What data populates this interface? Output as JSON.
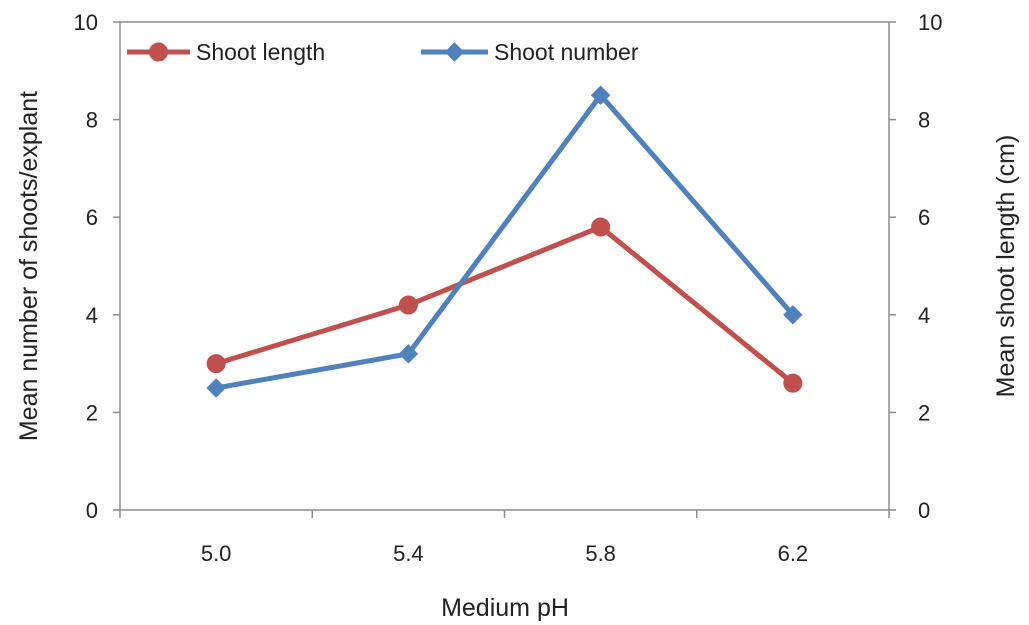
{
  "chart_data": {
    "type": "line",
    "categories": [
      "5.0",
      "5.4",
      "5.8",
      "6.2"
    ],
    "xlabel": "Medium pH",
    "ylabel_left": "Mean  number of shoots/explant",
    "ylabel_right": "Mean shoot length (cm)",
    "ylim_left": [
      0,
      10
    ],
    "ylim_right": [
      0,
      10
    ],
    "yticks_left": [
      "0",
      "2",
      "4",
      "6",
      "8",
      "10"
    ],
    "yticks_right": [
      "0",
      "2",
      "4",
      "6",
      "8",
      "10"
    ],
    "grid": false,
    "legend_position": "top-left",
    "series": [
      {
        "name": "Shoot length",
        "axis": "right",
        "marker": "circle",
        "color": "#c0504d",
        "values": [
          3.0,
          4.2,
          5.8,
          2.6
        ]
      },
      {
        "name": "Shoot number",
        "axis": "left",
        "marker": "diamond",
        "color": "#4f81bd",
        "values": [
          2.5,
          3.2,
          8.5,
          4.0
        ]
      }
    ]
  }
}
